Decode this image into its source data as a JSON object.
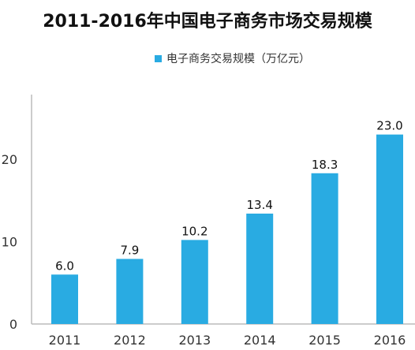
{
  "chart_data": {
    "type": "bar",
    "title": "2011-2016年中国电子商务市场交易规模",
    "xlabel": "",
    "ylabel": "",
    "categories": [
      "2011",
      "2012",
      "2013",
      "2014",
      "2015",
      "2016"
    ],
    "series": [
      {
        "name": "电子商务交易规模（万亿元）",
        "values": [
          6.0,
          7.9,
          10.2,
          13.4,
          18.3,
          23.0
        ],
        "color": "#29ABE2"
      }
    ],
    "data_labels": [
      "6.0",
      "7.9",
      "10.2",
      "13.4",
      "18.3",
      "23.0"
    ],
    "yticks": [
      "0",
      "10",
      "20"
    ],
    "ylim": [
      0,
      25
    ],
    "grid": false,
    "legend_position": "top-center",
    "axis_color": "#bbbbbb"
  }
}
